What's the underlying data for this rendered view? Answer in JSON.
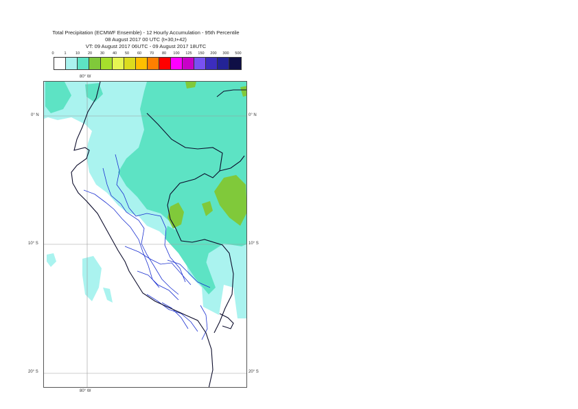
{
  "title": {
    "line1": "Total Precipitation (ECMWF Ensemble) - 12 Hourly Accumulation - 95th Percentile",
    "line2": "08 August 2017 00 UTC (t+30,t+42)",
    "line3": "VT: 09 August 2017 06UTC - 09 August 2017 18UTC"
  },
  "legend": {
    "labels": [
      "0",
      "1",
      "10",
      "20",
      "30",
      "40",
      "50",
      "60",
      "70",
      "80",
      "100",
      "125",
      "150",
      "200",
      "300",
      "500"
    ],
    "colors": [
      "#ffffff",
      "#aaf3ef",
      "#5de3c4",
      "#80c93a",
      "#a6e02c",
      "#e6f552",
      "#dcdc1e",
      "#ffbf00",
      "#ff7f00",
      "#ff0000",
      "#ff00ff",
      "#c800c8",
      "#7851f2",
      "#3c2dbe",
      "#232396",
      "#0f0f46"
    ]
  },
  "axes": {
    "lon_top": "80° W",
    "lon_bottom": "80° W",
    "lat_left": [
      "0° N",
      "10° S",
      "20° S"
    ],
    "lat_right": [
      "0° N",
      "10° S",
      "20° S"
    ]
  }
}
